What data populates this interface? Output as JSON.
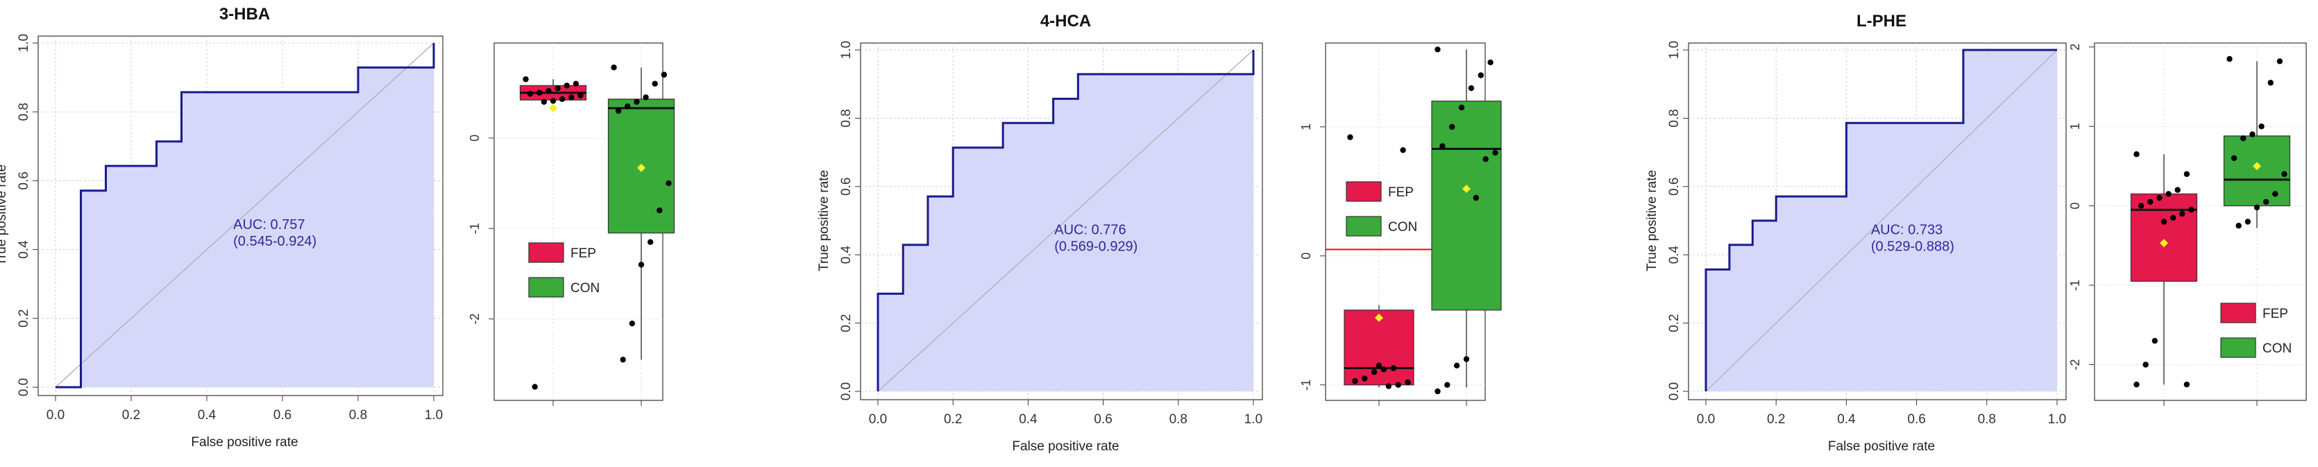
{
  "colors": {
    "roc_line": "#1a1a8c",
    "roc_fill": "#d6d8fa",
    "diagonal": "#aaaaaa",
    "grid": "#d0d0d0",
    "fep": "#e41a4c",
    "con": "#3aaa3a",
    "mean_marker": "#f2f227",
    "threshold": "#ff0000"
  },
  "chart_data": [
    {
      "type": "line",
      "title": "3-HBA",
      "xlabel": "False positive rate",
      "ylabel": "True positive rate",
      "xlim": [
        0,
        1
      ],
      "ylim": [
        0,
        1
      ],
      "x_ticks": [
        "0.0",
        "0.2",
        "0.4",
        "0.6",
        "0.8",
        "1.0"
      ],
      "y_ticks": [
        "0.0",
        "0.2",
        "0.4",
        "0.6",
        "0.8",
        "1.0"
      ],
      "auc_label": "AUC: 0.757",
      "ci_label": "(0.545-0.924)",
      "x": [
        0,
        0.067,
        0.067,
        0.133,
        0.133,
        0.267,
        0.267,
        0.333,
        0.333,
        0.8,
        0.8,
        1.0,
        1.0
      ],
      "y": [
        0,
        0,
        0.571,
        0.571,
        0.643,
        0.643,
        0.714,
        0.714,
        0.857,
        0.857,
        0.929,
        0.929,
        1.0
      ]
    },
    {
      "type": "box",
      "ylim": [
        -2.9,
        1.05
      ],
      "y_ticks": [
        "0",
        "-1",
        "-2"
      ],
      "y_tick_values": [
        0,
        -1,
        -2
      ],
      "legend": [
        "FEP",
        "CON"
      ],
      "legend_position": "center-left",
      "groups": [
        {
          "name": "FEP",
          "q1": 0.42,
          "median": 0.5,
          "q3": 0.58,
          "whisker_low": 0.38,
          "whisker_high": 0.65,
          "mean": 0.33,
          "points": [
            0.65,
            0.6,
            0.58,
            0.55,
            0.52,
            0.5,
            0.49,
            0.47,
            0.45,
            0.43,
            0.41,
            0.4,
            -2.75
          ]
        },
        {
          "name": "CON",
          "q1": -1.05,
          "median": 0.33,
          "q3": 0.43,
          "whisker_low": -2.45,
          "whisker_high": 0.78,
          "mean": -0.33,
          "points": [
            0.78,
            0.7,
            0.6,
            0.45,
            0.4,
            0.35,
            0.3,
            -0.5,
            -0.8,
            -1.15,
            -1.4,
            -2.05,
            -2.45
          ]
        }
      ]
    },
    {
      "type": "line",
      "title": "4-HCA",
      "xlabel": "False positive rate",
      "ylabel": "True positive rate",
      "xlim": [
        0,
        1
      ],
      "ylim": [
        0,
        1
      ],
      "x_ticks": [
        "0.0",
        "0.2",
        "0.4",
        "0.6",
        "0.8",
        "1.0"
      ],
      "y_ticks": [
        "0.0",
        "0.2",
        "0.4",
        "0.6",
        "0.8",
        "1.0"
      ],
      "auc_label": "AUC: 0.776",
      "ci_label": "(0.569-0.929)",
      "x": [
        0,
        0,
        0.067,
        0.067,
        0.133,
        0.133,
        0.2,
        0.2,
        0.333,
        0.333,
        0.467,
        0.467,
        0.533,
        0.533,
        1.0,
        1.0
      ],
      "y": [
        0,
        0.286,
        0.286,
        0.429,
        0.429,
        0.571,
        0.571,
        0.714,
        0.714,
        0.786,
        0.786,
        0.857,
        0.857,
        0.929,
        0.929,
        1.0
      ]
    },
    {
      "type": "box",
      "ylim": [
        -1.12,
        1.65
      ],
      "y_ticks": [
        "1",
        "0",
        "-1"
      ],
      "y_tick_values": [
        1,
        0,
        -1
      ],
      "threshold": 0.05,
      "legend": [
        "FEP",
        "CON"
      ],
      "legend_position": "top-left",
      "groups": [
        {
          "name": "FEP",
          "q1": -1.0,
          "median": -0.87,
          "q3": -0.42,
          "whisker_low": -1.02,
          "whisker_high": -0.38,
          "mean": -0.48,
          "points": [
            0.92,
            0.82,
            -0.87,
            -0.88,
            -0.9,
            -0.95,
            -0.97,
            -0.98,
            -1.0,
            -1.01,
            -0.85
          ]
        },
        {
          "name": "CON",
          "q1": -0.42,
          "median": 0.83,
          "q3": 1.2,
          "whisker_low": -1.02,
          "whisker_high": 1.6,
          "mean": 0.52,
          "points": [
            1.6,
            1.5,
            1.4,
            1.3,
            1.15,
            1.0,
            0.85,
            0.8,
            0.75,
            0.45,
            -0.8,
            -0.85,
            -1.0,
            -1.05
          ]
        }
      ]
    },
    {
      "type": "line",
      "title": "L-PHE",
      "xlabel": "False positive rate",
      "ylabel": "True positive rate",
      "xlim": [
        0,
        1
      ],
      "ylim": [
        0,
        1
      ],
      "x_ticks": [
        "0.0",
        "0.2",
        "0.4",
        "0.6",
        "0.8",
        "1.0"
      ],
      "y_ticks": [
        "0.0",
        "0.2",
        "0.4",
        "0.6",
        "0.8",
        "1.0"
      ],
      "auc_label": "AUC: 0.733",
      "ci_label": "(0.529-0.888)",
      "x": [
        0,
        0,
        0.067,
        0.067,
        0.133,
        0.133,
        0.2,
        0.2,
        0.4,
        0.4,
        0.733,
        0.733,
        1.0
      ],
      "y": [
        0,
        0.357,
        0.357,
        0.429,
        0.429,
        0.5,
        0.5,
        0.571,
        0.571,
        0.786,
        0.786,
        1.0,
        1.0
      ]
    },
    {
      "type": "box",
      "ylim": [
        -2.45,
        2.05
      ],
      "y_ticks": [
        "2",
        "1",
        "0",
        "-1",
        "-2"
      ],
      "y_tick_values": [
        2,
        1,
        0,
        -1,
        -2
      ],
      "legend": [
        "FEP",
        "CON"
      ],
      "legend_position": "bottom-right",
      "groups": [
        {
          "name": "FEP",
          "q1": -0.95,
          "median": -0.05,
          "q3": 0.15,
          "whisker_low": -2.25,
          "whisker_high": 0.65,
          "mean": -0.47,
          "points": [
            0.65,
            0.4,
            0.2,
            0.15,
            0.1,
            0.05,
            0.0,
            -0.05,
            -0.1,
            -0.15,
            -0.2,
            -1.7,
            -2.0,
            -2.25,
            -2.25
          ]
        },
        {
          "name": "CON",
          "q1": 0.0,
          "median": 0.33,
          "q3": 0.88,
          "whisker_low": -0.28,
          "whisker_high": 1.82,
          "mean": 0.5,
          "points": [
            1.85,
            1.82,
            1.55,
            1.0,
            0.9,
            0.85,
            0.6,
            0.4,
            0.15,
            0.05,
            -0.02,
            -0.2,
            -0.25
          ]
        }
      ]
    }
  ]
}
